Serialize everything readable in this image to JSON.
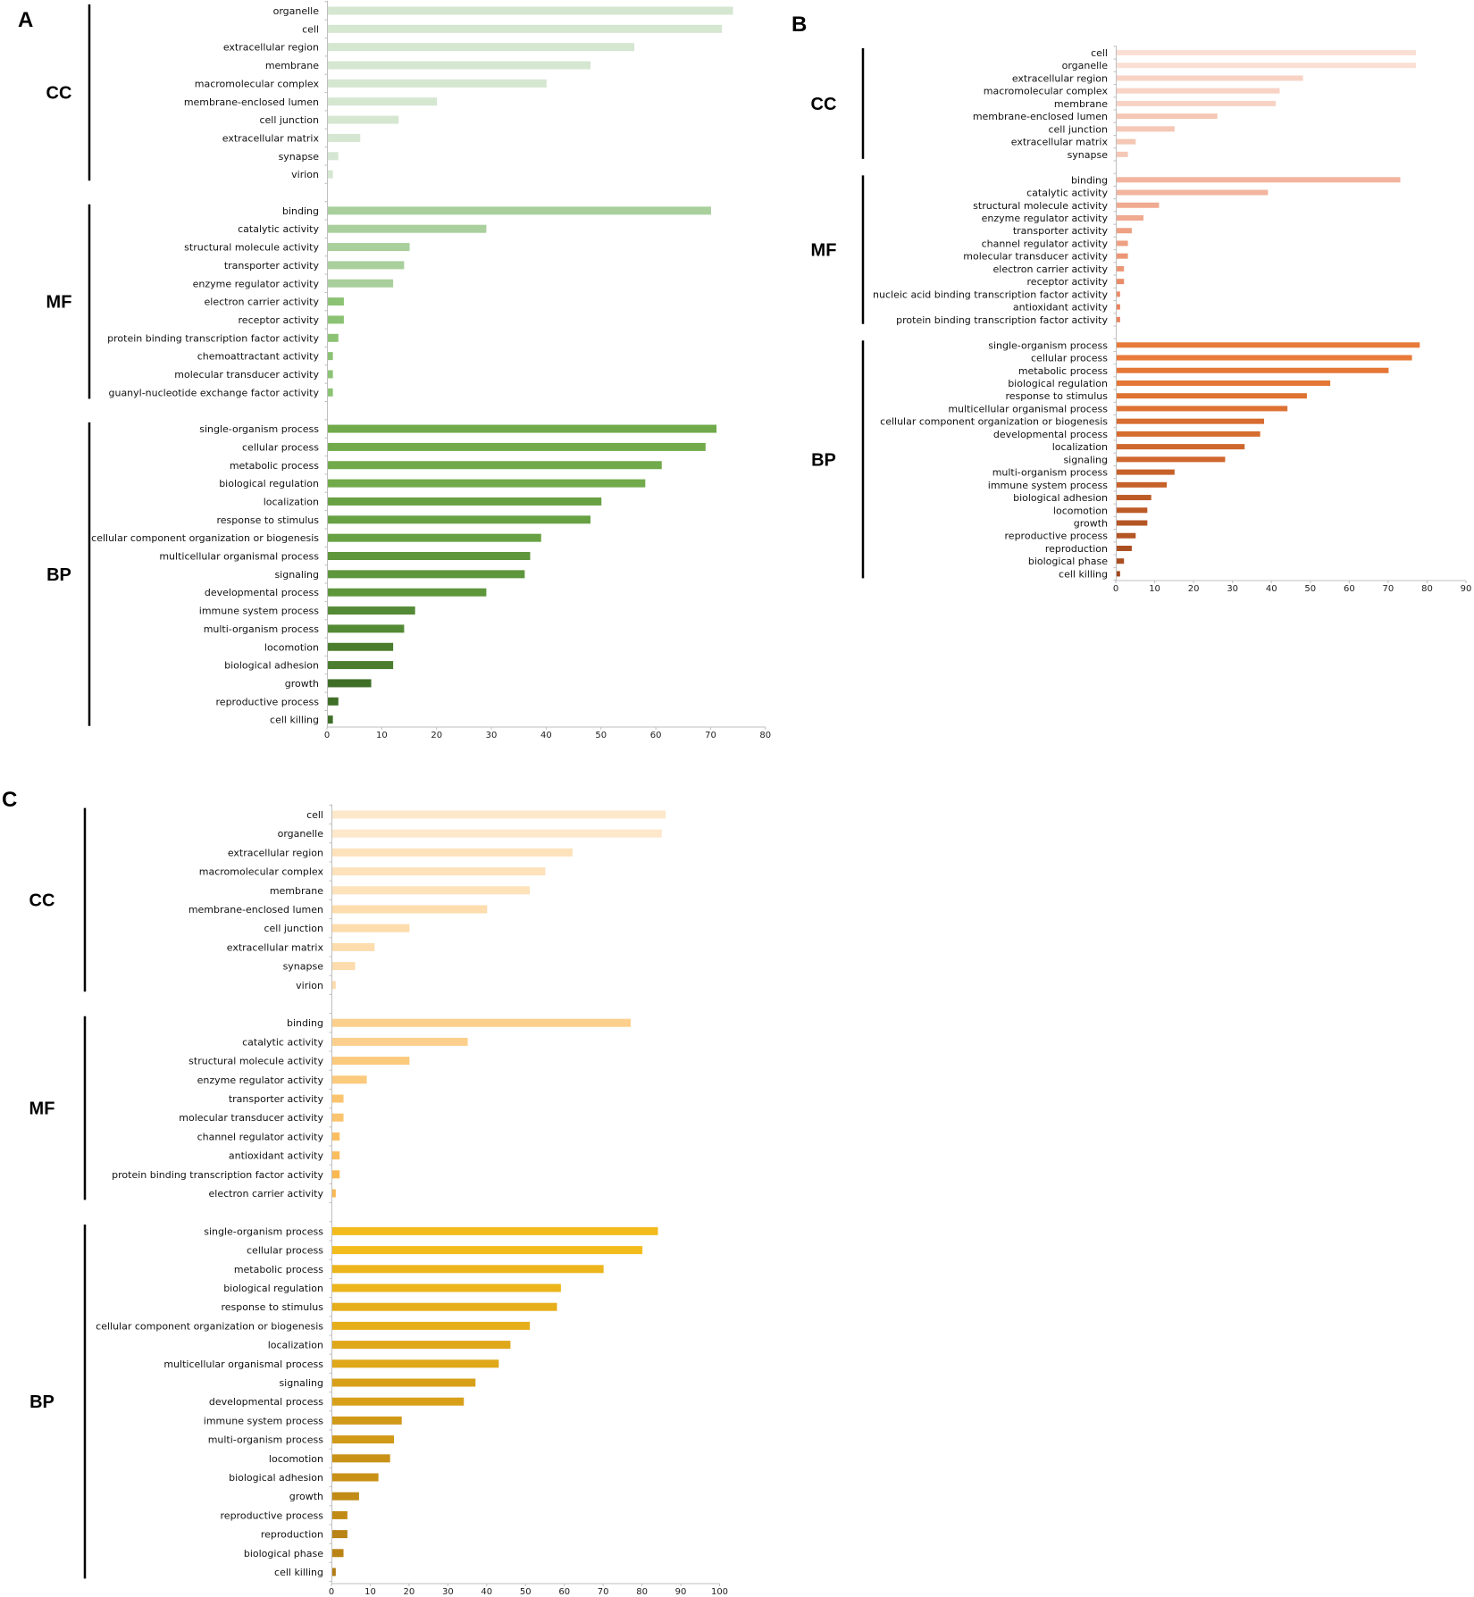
{
  "figure": {
    "panels": [
      "A",
      "B",
      "C"
    ]
  },
  "chart_data": [
    {
      "panel": "A",
      "type": "bar",
      "orientation": "horizontal",
      "xlim": [
        0,
        80
      ],
      "xticks": [
        0,
        10,
        20,
        30,
        40,
        50,
        60,
        70,
        80
      ],
      "groups": [
        {
          "name": "CC",
          "categories": [
            "organelle",
            "cell",
            "extracellular region",
            "membrane",
            "macromolecular complex",
            "membrane-enclosed lumen",
            "cell junction",
            "extracellular matrix",
            "synapse",
            "virion"
          ],
          "values": [
            74,
            72,
            56,
            48,
            40,
            20,
            13,
            6,
            2,
            1
          ],
          "colors": [
            "#d5e6d1",
            "#d5e6d1",
            "#d5e6d1",
            "#d5e6d1",
            "#d5e6d1",
            "#d5e6d1",
            "#d5e6d1",
            "#d5e6d1",
            "#d5e6d1",
            "#d5e6d1"
          ]
        },
        {
          "name": "MF",
          "categories": [
            "binding",
            "catalytic activity",
            "structural molecule activity",
            "transporter activity",
            "enzyme regulator activity",
            "electron carrier activity",
            "receptor activity",
            "protein binding transcription factor activity",
            "chemoattractant activity",
            "molecular transducer activity",
            "guanyl-nucleotide exchange factor activity"
          ],
          "values": [
            70,
            29,
            15,
            14,
            12,
            3,
            3,
            2,
            1,
            1,
            1
          ],
          "colors": [
            "#a9cf9c",
            "#a9cf9c",
            "#a9cf9c",
            "#a9cf9c",
            "#a9cf9c",
            "#8bc273",
            "#8bc273",
            "#8bc273",
            "#8bc273",
            "#8bc273",
            "#8bc273"
          ]
        },
        {
          "name": "BP",
          "categories": [
            "single-organism process",
            "cellular process",
            "metabolic process",
            "biological regulation",
            "localization",
            "response to stimulus",
            "cellular component organization or biogenesis",
            "multicellular organismal process",
            "signaling",
            "developmental process",
            "immune system process",
            "multi-organism process",
            "locomotion",
            "biological adhesion",
            "growth",
            "reproductive process",
            "cell killing"
          ],
          "values": [
            71,
            69,
            61,
            58,
            50,
            48,
            39,
            37,
            36,
            29,
            16,
            14,
            12,
            12,
            8,
            2,
            1
          ],
          "colors": [
            "#70aa4a",
            "#70aa4a",
            "#70aa4a",
            "#70aa4a",
            "#68a143",
            "#68a143",
            "#68a143",
            "#5e963c",
            "#5e963c",
            "#5e963c",
            "#548a35",
            "#548a35",
            "#4a7d2e",
            "#4a7d2e",
            "#3f6f27",
            "#3f6f27",
            "#3f6f27"
          ]
        }
      ]
    },
    {
      "panel": "B",
      "type": "bar",
      "orientation": "horizontal",
      "xlim": [
        0,
        90
      ],
      "xticks": [
        0,
        10,
        20,
        30,
        40,
        50,
        60,
        70,
        80,
        90
      ],
      "groups": [
        {
          "name": "CC",
          "categories": [
            "cell",
            "organelle",
            "extracellular region",
            "macromolecular complex",
            "membrane",
            "membrane-enclosed lumen",
            "cell junction",
            "extracellular matrix",
            "synapse"
          ],
          "values": [
            77,
            77,
            48,
            42,
            41,
            26,
            15,
            5,
            3
          ],
          "colors": [
            "#fbdfd5",
            "#fbdfd5",
            "#f8d3c5",
            "#f8d3c5",
            "#f8d3c5",
            "#f5c7b5",
            "#f5c7b5",
            "#f5c7b5",
            "#f5c7b5"
          ]
        },
        {
          "name": "MF",
          "categories": [
            "binding",
            "catalytic activity",
            "structural molecule activity",
            "enzyme regulator activity",
            "transporter activity",
            "channel regulator activity",
            "molecular transducer activity",
            "electron carrier activity",
            "receptor activity",
            "nucleic acid binding transcription factor activity",
            "antioxidant activity",
            "protein binding transcription factor activity"
          ],
          "values": [
            73,
            39,
            11,
            7,
            4,
            3,
            3,
            2,
            2,
            1,
            1,
            1
          ],
          "colors": [
            "#f2b49e",
            "#f2b49e",
            "#f0aa90",
            "#f0aa90",
            "#eea083",
            "#eea083",
            "#ec9676",
            "#ec9676",
            "#ea8c69",
            "#ea8c69",
            "#e8835d",
            "#e8835d"
          ]
        },
        {
          "name": "BP",
          "categories": [
            "single-organism process",
            "cellular process",
            "metabolic process",
            "biological regulation",
            "response to stimulus",
            "multicellular organismal process",
            "cellular component organization or biogenesis",
            "developmental process",
            "localization",
            "signaling",
            "multi-organism process",
            "immune system process",
            "biological adhesion",
            "locomotion",
            "growth",
            "reproductive process",
            "reproduction",
            "biological phase",
            "cell killing"
          ],
          "values": [
            78,
            76,
            70,
            55,
            49,
            44,
            38,
            37,
            33,
            28,
            15,
            13,
            9,
            8,
            8,
            5,
            4,
            2,
            1
          ],
          "colors": [
            "#e87a3a",
            "#e87a3a",
            "#e47636",
            "#e47636",
            "#de7233",
            "#de7233",
            "#d66c30",
            "#d66c30",
            "#cf672d",
            "#cf672d",
            "#c7612a",
            "#c7612a",
            "#bd5b27",
            "#bd5b27",
            "#b45524",
            "#b45524",
            "#aa4f21",
            "#aa4f21",
            "#a0491e"
          ]
        }
      ]
    },
    {
      "panel": "C",
      "type": "bar",
      "orientation": "horizontal",
      "xlim": [
        0,
        100
      ],
      "xticks": [
        0,
        10,
        20,
        30,
        40,
        50,
        60,
        70,
        80,
        90,
        100
      ],
      "groups": [
        {
          "name": "CC",
          "categories": [
            "cell",
            "organelle",
            "extracellular region",
            "macromolecular complex",
            "membrane",
            "membrane-enclosed lumen",
            "cell junction",
            "extracellular matrix",
            "synapse",
            "virion"
          ],
          "values": [
            86,
            85,
            62,
            55,
            51,
            40,
            20,
            11,
            6,
            1
          ],
          "colors": [
            "#fde8cb",
            "#fde8cb",
            "#fde2bb",
            "#fde2bb",
            "#fde2bb",
            "#fddcad",
            "#fddcad",
            "#fddcad",
            "#fddcad",
            "#fddcad"
          ]
        },
        {
          "name": "MF",
          "categories": [
            "binding",
            "catalytic activity",
            "structural molecule activity",
            "enzyme regulator activity",
            "transporter activity",
            "molecular transducer activity",
            "channel regulator activity",
            "antioxidant activity",
            "protein binding transcription factor activity",
            "electron carrier activity"
          ],
          "values": [
            77,
            35,
            20,
            9,
            3,
            3,
            2,
            2,
            2,
            1
          ],
          "colors": [
            "#fcd08c",
            "#fcd08c",
            "#fcca7d",
            "#fcca7d",
            "#fbc46e",
            "#fbc46e",
            "#fbbe5f",
            "#fbbe5f",
            "#fab850",
            "#fab850"
          ]
        },
        {
          "name": "BP",
          "categories": [
            "single-organism process",
            "cellular process",
            "metabolic process",
            "biological regulation",
            "response to stimulus",
            "cellular component organization or biogenesis",
            "localization",
            "multicellular organismal process",
            "signaling",
            "developmental process",
            "immune system process",
            "multi-organism process",
            "locomotion",
            "biological adhesion",
            "growth",
            "reproductive process",
            "reproduction",
            "biological phase",
            "cell killing"
          ],
          "values": [
            84,
            80,
            70,
            59,
            58,
            51,
            46,
            43,
            37,
            34,
            18,
            16,
            15,
            12,
            7,
            4,
            4,
            3,
            1
          ],
          "colors": [
            "#f2bc1d",
            "#f2bc1d",
            "#ecb51c",
            "#ecb51c",
            "#e6ae1b",
            "#e6ae1b",
            "#dfa71a",
            "#dfa71a",
            "#d8a019",
            "#d8a019",
            "#d19918",
            "#d19918",
            "#c99217",
            "#c99217",
            "#c18b16",
            "#c18b16",
            "#b98415",
            "#b98415",
            "#b17d14"
          ]
        }
      ]
    }
  ]
}
